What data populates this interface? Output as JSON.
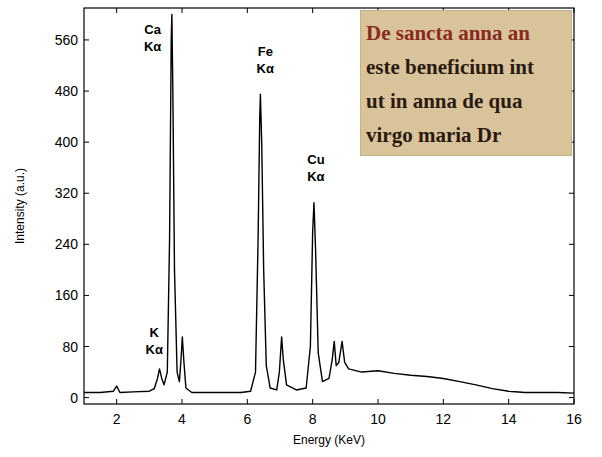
{
  "chart_data": {
    "type": "line",
    "x_label": "Energy (KeV)",
    "y_label": "Intensity (a.u.)",
    "xlim": [
      1,
      16
    ],
    "ylim": [
      -10,
      610
    ],
    "xticks": [
      2,
      4,
      6,
      8,
      10,
      12,
      14,
      16
    ],
    "yticks": [
      0,
      80,
      160,
      240,
      320,
      400,
      480,
      560
    ],
    "grid": false,
    "x": [
      1.0,
      1.5,
      1.9,
      2.0,
      2.1,
      2.5,
      3.0,
      3.15,
      3.25,
      3.31,
      3.38,
      3.45,
      3.55,
      3.62,
      3.67,
      3.69,
      3.72,
      3.77,
      3.85,
      3.92,
      3.97,
      4.01,
      4.06,
      4.12,
      4.3,
      5.0,
      5.8,
      6.1,
      6.25,
      6.33,
      6.38,
      6.4,
      6.44,
      6.5,
      6.58,
      6.7,
      6.9,
      6.98,
      7.05,
      7.1,
      7.2,
      7.5,
      7.8,
      7.93,
      8.0,
      8.04,
      8.09,
      8.17,
      8.3,
      8.5,
      8.6,
      8.66,
      8.72,
      8.8,
      8.9,
      8.98,
      9.1,
      9.5,
      10.0,
      10.5,
      11.0,
      11.5,
      12.0,
      12.5,
      13.0,
      13.5,
      14.0,
      14.5,
      15.0,
      15.5,
      16.0
    ],
    "series": [
      {
        "color": "#000000",
        "line_style": "solid",
        "values": [
          8,
          8,
          10,
          18,
          8,
          9,
          10,
          14,
          30,
          45,
          30,
          20,
          40,
          250,
          560,
          600,
          480,
          200,
          40,
          25,
          60,
          95,
          55,
          15,
          8,
          8,
          8,
          10,
          40,
          250,
          440,
          475,
          400,
          200,
          50,
          15,
          12,
          40,
          95,
          60,
          20,
          12,
          15,
          80,
          260,
          305,
          230,
          70,
          25,
          30,
          60,
          88,
          50,
          55,
          88,
          55,
          45,
          40,
          42,
          38,
          35,
          33,
          30,
          25,
          20,
          14,
          10,
          8,
          8,
          8,
          7
        ]
      }
    ],
    "annotations": [
      {
        "text": "Ca Kα",
        "x": 3.1,
        "y": 570
      },
      {
        "text": "Fe Kα",
        "x": 6.55,
        "y": 535
      },
      {
        "text": "Cu Kα",
        "x": 8.1,
        "y": 365
      },
      {
        "text": "K Kα",
        "x": 3.15,
        "y": 95
      }
    ]
  },
  "inset": {
    "lines": [
      "De sancta anna an",
      "este beneficium int",
      "ut in anna de qua",
      "virgo maria Dr"
    ]
  }
}
